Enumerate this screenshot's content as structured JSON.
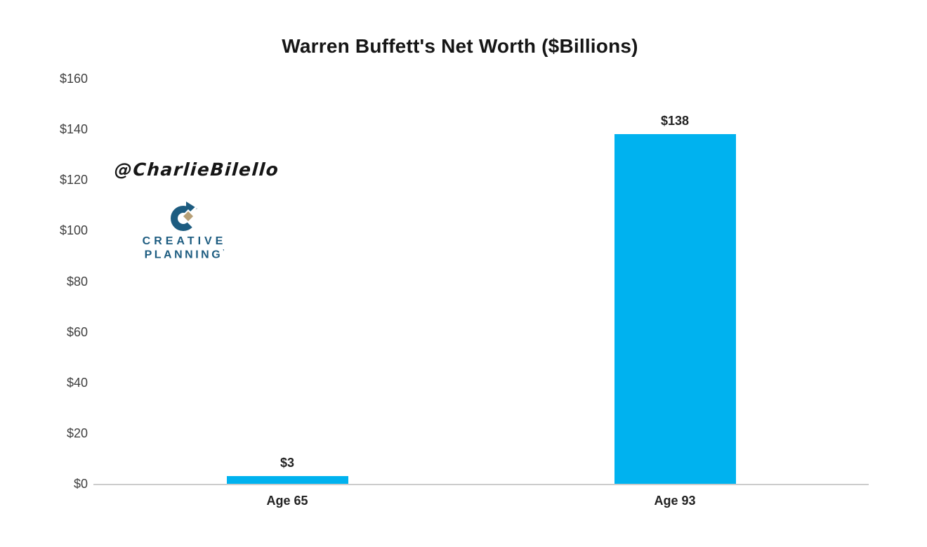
{
  "chart_data": {
    "type": "bar",
    "title": "Warren Buffett's Net Worth ($Billions)",
    "categories": [
      "Age 65",
      "Age 93"
    ],
    "values": [
      3,
      138
    ],
    "bar_value_labels": [
      "$3",
      "$138"
    ],
    "xlabel": "",
    "ylabel": "",
    "ylim": [
      0,
      160
    ],
    "ytick_interval": 20,
    "ytick_labels": [
      "$0",
      "$20",
      "$40",
      "$60",
      "$80",
      "$100",
      "$120",
      "$140",
      "$160"
    ],
    "bar_color": "#00b2ef",
    "axis_line_color": "#cccccc",
    "grid": false,
    "legend": false
  },
  "watermark": {
    "handle": "@CharlieBilello"
  },
  "logo": {
    "line1": "CREATIVE",
    "line2": "PLANNING",
    "trademark": "’",
    "blue": "#1d5c80",
    "tan": "#b7a077"
  }
}
